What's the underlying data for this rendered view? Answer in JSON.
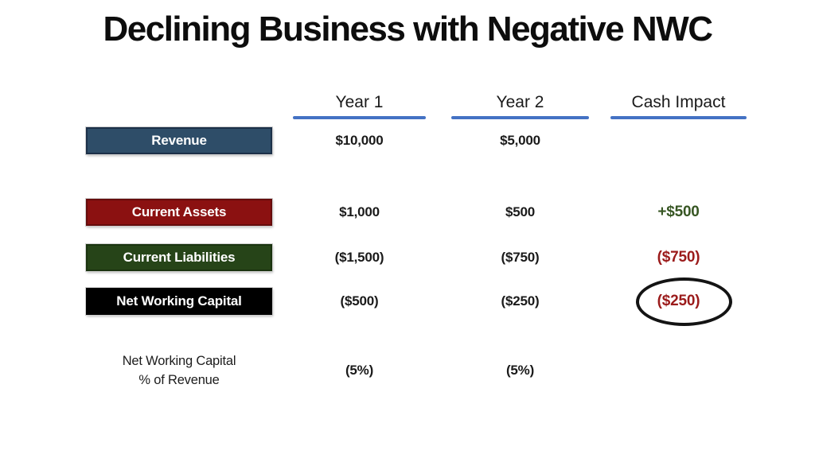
{
  "title": "Declining Business with Negative NWC",
  "columns": [
    "Year 1",
    "Year 2",
    "Cash Impact"
  ],
  "rows": [
    {
      "label": "Revenue",
      "year1": "$10,000",
      "year2": "$5,000"
    },
    {
      "label": "Current Assets",
      "year1": "$1,000",
      "year2": "$500",
      "cash_impact": "+$500"
    },
    {
      "label": "Current Liabilities",
      "year1": "($1,500)",
      "year2": "($750)",
      "cash_impact": "($750)"
    },
    {
      "label": "Net Working Capital",
      "year1": "($500)",
      "year2": "($250)",
      "cash_impact": "($250)"
    },
    {
      "label_line1": "Net Working Capital",
      "label_line2": "% of Revenue",
      "year1": "(5%)",
      "year2": "(5%)"
    }
  ],
  "colors": {
    "revenue-box": "#2E4D68",
    "assets-box": "#8B1111",
    "liabilities-box": "#264418",
    "nwc-box": "#000000",
    "positive-green": "#375623",
    "negative-red": "#9B1B1B",
    "underline-blue": "#4472C4",
    "text-dark": "#1A1A1A"
  },
  "annotations": {
    "circle_highlight": "hand-drawn black ellipse around Cash Impact ($250)"
  },
  "chart_data": {
    "type": "table",
    "title": "Declining Business with Negative NWC",
    "columns": [
      "",
      "Year 1",
      "Year 2",
      "Cash Impact"
    ],
    "rows": [
      [
        "Revenue",
        "$10,000",
        "$5,000",
        ""
      ],
      [
        "Current Assets",
        "$1,000",
        "$500",
        "+$500"
      ],
      [
        "Current Liabilities",
        "($1,500)",
        "($750)",
        "($750)"
      ],
      [
        "Net Working Capital",
        "($500)",
        "($250)",
        "($250)"
      ],
      [
        "Net Working Capital % of Revenue",
        "(5%)",
        "(5%)",
        ""
      ]
    ]
  }
}
